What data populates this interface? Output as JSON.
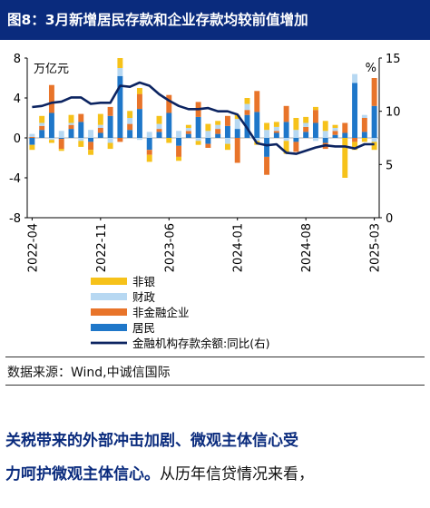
{
  "figure": {
    "title": "图8：3月新增居民存款和企业存款均较前值增加",
    "source": "数据来源：Wind,中诚信国际"
  },
  "body": {
    "line1_highlight": "关税带来的外部冲击加剧、微观主体信心受",
    "line2_highlight": "力呵护微观主体信心。",
    "line2_plain": "从历年信贷情况来看，"
  },
  "colors": {
    "non_bank": "#f6c21a",
    "fiscal": "#b7d8f2",
    "non_financial": "#e8742a",
    "resident": "#1f77c9",
    "growth": "#0c2461",
    "header_bg": "#0a2b7d"
  },
  "chart_data": {
    "type": "bar",
    "stacked": true,
    "left_unit": "万亿元",
    "right_unit": "%",
    "ylim": [
      -8,
      8
    ],
    "yticks": [
      -8,
      -4,
      0,
      4,
      8
    ],
    "y2lim": [
      0,
      15
    ],
    "y2ticks": [
      0,
      5,
      10,
      15
    ],
    "x_tick_labels": [
      "2022-04",
      "2022-11",
      "2023-06",
      "2024-01",
      "2024-08",
      "2025-03"
    ],
    "x_tick_months": [
      "2022-04",
      "2022-11",
      "2023-06",
      "2024-01",
      "2024-08",
      "2025-03"
    ],
    "months": [
      "2022-04",
      "2022-05",
      "2022-06",
      "2022-07",
      "2022-08",
      "2022-09",
      "2022-10",
      "2022-11",
      "2022-12",
      "2023-01",
      "2023-02",
      "2023-03",
      "2023-04",
      "2023-05",
      "2023-06",
      "2023-07",
      "2023-08",
      "2023-09",
      "2023-10",
      "2023-11",
      "2023-12",
      "2024-01",
      "2024-02",
      "2024-03",
      "2024-04",
      "2024-05",
      "2024-06",
      "2024-07",
      "2024-08",
      "2024-09",
      "2024-10",
      "2024-11",
      "2024-12",
      "2025-01",
      "2025-02",
      "2025-03"
    ],
    "legend": [
      "非银",
      "财政",
      "非金融企业",
      "居民",
      "金融机构存款余额:同比(右)"
    ],
    "series": [
      {
        "name": "居民",
        "values": [
          -0.7,
          0.8,
          2.5,
          -0.1,
          0.9,
          1.6,
          -0.4,
          0.5,
          2.2,
          6.2,
          0.8,
          2.9,
          -1.2,
          0.6,
          2.5,
          -0.8,
          0.4,
          2.1,
          -0.6,
          0.4,
          1.2,
          0.9,
          2.3,
          2.6,
          -1.9,
          0.5,
          1.6,
          -0.4,
          0.6,
          1.5,
          -0.5,
          0.3,
          0.5,
          5.5,
          0.6,
          3.2
        ]
      },
      {
        "name": "非金融企业",
        "values": [
          0.1,
          0.4,
          2.8,
          -1.0,
          0.4,
          0.8,
          -0.8,
          0.5,
          0.9,
          -0.4,
          0.6,
          1.5,
          -0.5,
          0.3,
          1.8,
          -1.1,
          0.3,
          1.5,
          -0.4,
          0.5,
          1.0,
          -2.5,
          0.5,
          2.1,
          -1.8,
          0.2,
          1.6,
          -1.0,
          0.5,
          1.3,
          -0.6,
          0.4,
          1.0,
          -0.4,
          1.4,
          2.8
        ]
      },
      {
        "name": "财政",
        "values": [
          0.3,
          0.3,
          -0.2,
          0.7,
          0.2,
          -0.3,
          0.8,
          0.3,
          -0.5,
          0.8,
          0.6,
          -0.2,
          0.6,
          0.5,
          0.0,
          0.7,
          0.3,
          -0.3,
          0.7,
          0.4,
          -0.6,
          1.0,
          0.6,
          -0.3,
          0.8,
          0.4,
          -0.3,
          0.8,
          0.4,
          -0.3,
          0.7,
          0.3,
          0.0,
          0.9,
          0.3,
          -0.4
        ]
      },
      {
        "name": "非银",
        "values": [
          -0.5,
          0.7,
          -0.3,
          -0.2,
          0.8,
          -0.6,
          -0.5,
          1.1,
          -0.6,
          1.0,
          0.7,
          0.6,
          -0.7,
          0.8,
          -0.5,
          -0.4,
          0.3,
          -0.4,
          0.7,
          0.4,
          -0.6,
          0.4,
          0.6,
          -0.4,
          0.7,
          0.5,
          -1.3,
          1.2,
          0.6,
          0.3,
          1.0,
          0.3,
          -4.0,
          -0.8,
          -0.4,
          -0.8
        ]
      },
      {
        "name": "金融机构存款余额:同比(右)",
        "type": "line",
        "axis": "right",
        "values": [
          10.4,
          10.5,
          10.8,
          10.9,
          11.3,
          11.3,
          10.7,
          10.8,
          10.8,
          12.4,
          12.3,
          12.7,
          12.4,
          11.6,
          11.0,
          10.5,
          10.2,
          10.2,
          10.3,
          10.0,
          10.0,
          9.7,
          8.4,
          7.0,
          6.8,
          6.9,
          6.1,
          6.0,
          6.3,
          6.6,
          6.8,
          6.7,
          6.7,
          6.5,
          6.9,
          6.9
        ]
      }
    ]
  }
}
